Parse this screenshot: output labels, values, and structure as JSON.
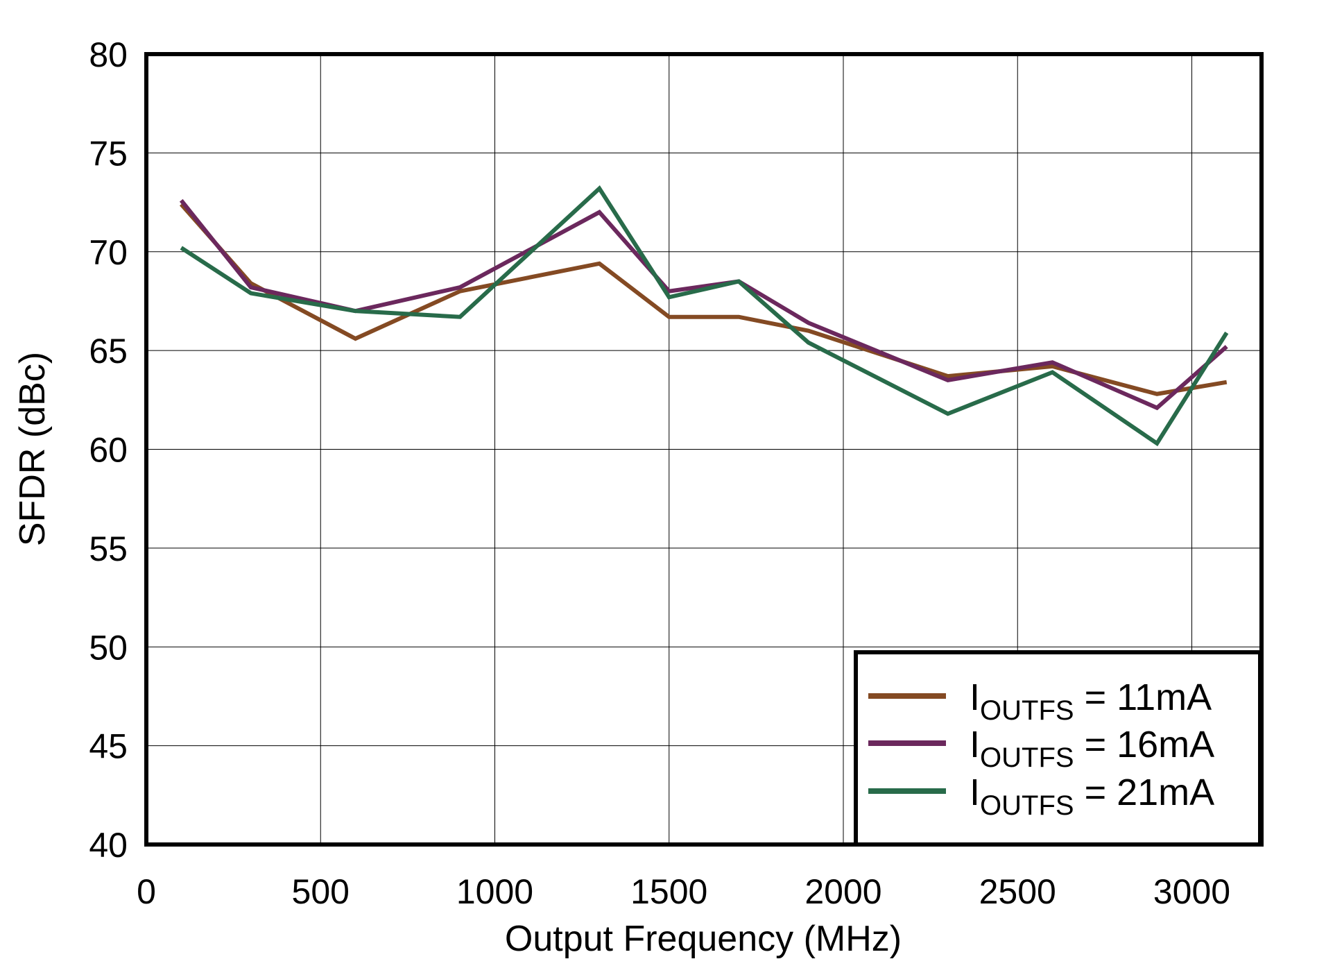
{
  "chart_data": {
    "type": "line",
    "title": "",
    "xlabel": "Output Frequency (MHz)",
    "ylabel": "SFDR (dBc)",
    "xlim": [
      0,
      3200
    ],
    "ylim": [
      40,
      80
    ],
    "xticks": [
      0,
      500,
      1000,
      1500,
      2000,
      2500,
      3000
    ],
    "yticks": [
      40,
      45,
      50,
      55,
      60,
      65,
      70,
      75,
      80
    ],
    "grid": true,
    "legend_position": "bottom-right",
    "x": [
      100,
      300,
      600,
      900,
      1300,
      1500,
      1700,
      1900,
      2300,
      2600,
      2900,
      3100
    ],
    "series": [
      {
        "name": "IOUTFS = 11mA",
        "label_main": "I",
        "label_sub": "OUTFS",
        "label_rest": " = 11mA",
        "color": "#844a23",
        "values": [
          72.4,
          68.4,
          65.6,
          68.0,
          69.4,
          66.7,
          66.7,
          66.0,
          63.7,
          64.2,
          62.8,
          63.4
        ]
      },
      {
        "name": "IOUTFS = 16mA",
        "label_main": "I",
        "label_sub": "OUTFS",
        "label_rest": " = 16mA",
        "color": "#6b285d",
        "values": [
          72.6,
          68.2,
          67.0,
          68.2,
          72.0,
          68.0,
          68.5,
          66.4,
          63.5,
          64.4,
          62.1,
          65.2
        ]
      },
      {
        "name": "IOUTFS = 21mA",
        "label_main": "I",
        "label_sub": "OUTFS",
        "label_rest": " = 21mA",
        "color": "#286b4a",
        "values": [
          70.2,
          67.9,
          67.0,
          66.7,
          73.2,
          67.7,
          68.5,
          65.4,
          61.8,
          63.9,
          60.3,
          65.9
        ]
      }
    ]
  }
}
